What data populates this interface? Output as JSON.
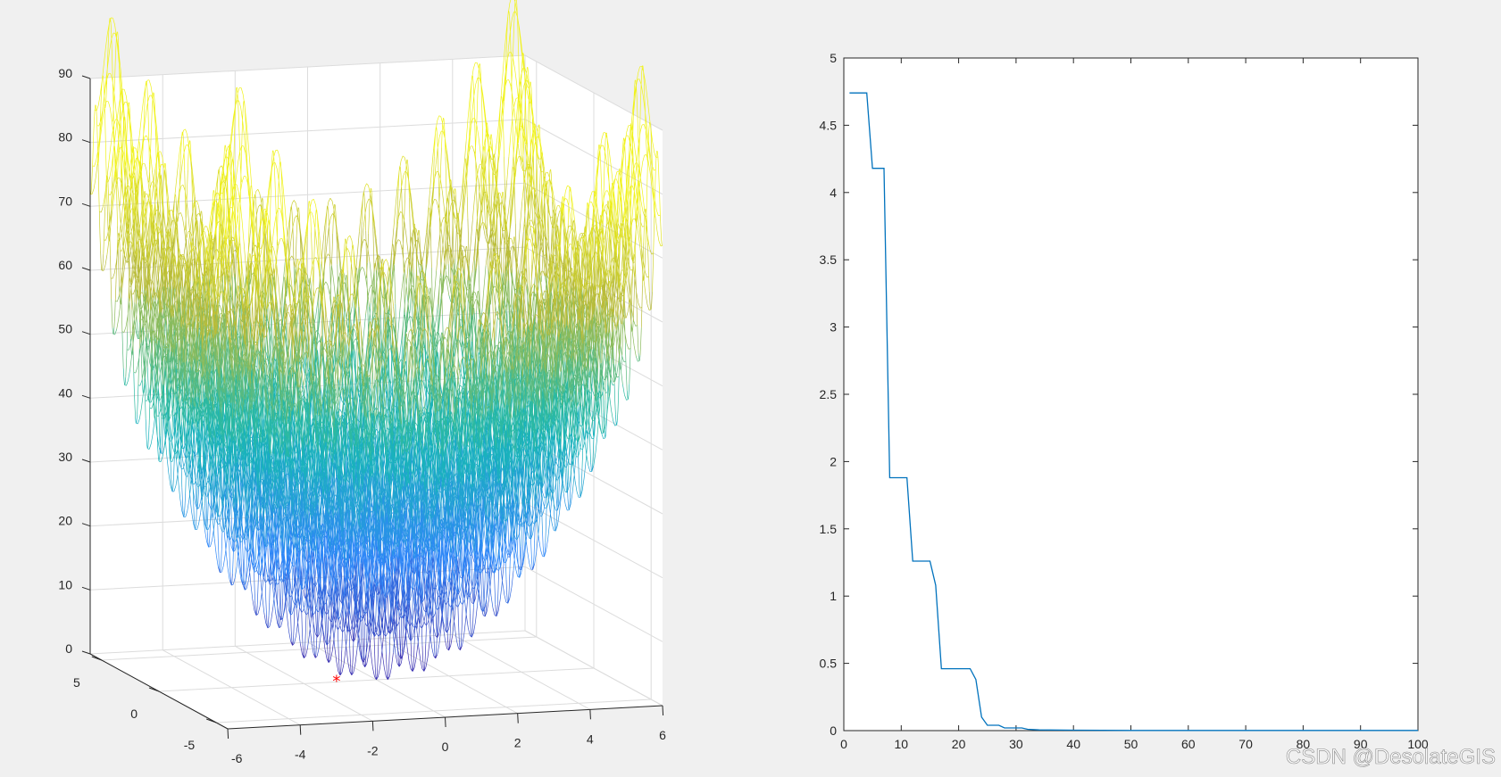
{
  "chart_data": [
    {
      "type": "surface3d",
      "function": "rastrigin",
      "xlim": [
        -6,
        6
      ],
      "ylim": [
        -6,
        6
      ],
      "zlim": [
        0,
        90
      ],
      "x_ticks": [
        "-6",
        "-4",
        "-2",
        "0",
        "2",
        "4",
        "6"
      ],
      "y_ticks": [
        "-5",
        "0",
        "5"
      ],
      "z_ticks": [
        "0",
        "10",
        "20",
        "30",
        "40",
        "50",
        "60",
        "70",
        "80",
        "90"
      ],
      "grid": true,
      "colormap": "parula",
      "marker": {
        "symbol": "*",
        "color": "#ff0000",
        "x": -1.1,
        "y": 0,
        "z": 0
      }
    },
    {
      "type": "line",
      "xlim": [
        0,
        100
      ],
      "ylim": [
        0,
        5
      ],
      "x_ticks": [
        "0",
        "10",
        "20",
        "30",
        "40",
        "50",
        "60",
        "70",
        "80",
        "90",
        "100"
      ],
      "y_ticks": [
        "0",
        "0.5",
        "1",
        "1.5",
        "2",
        "2.5",
        "3",
        "3.5",
        "4",
        "4.5",
        "5"
      ],
      "line_color": "#0072bd",
      "series": [
        {
          "x": [
            1,
            4,
            5,
            7,
            8,
            11,
            12,
            15,
            16,
            17,
            22,
            23,
            24,
            25,
            27,
            28,
            31,
            32,
            34,
            40,
            50,
            100
          ],
          "y": [
            4.74,
            4.74,
            4.18,
            4.18,
            1.88,
            1.88,
            1.26,
            1.26,
            1.08,
            0.46,
            0.46,
            0.38,
            0.1,
            0.04,
            0.04,
            0.02,
            0.02,
            0.01,
            0.005,
            0.003,
            0.001,
            0.001
          ]
        }
      ]
    }
  ],
  "watermark": "CSDN @DesolateGIS"
}
